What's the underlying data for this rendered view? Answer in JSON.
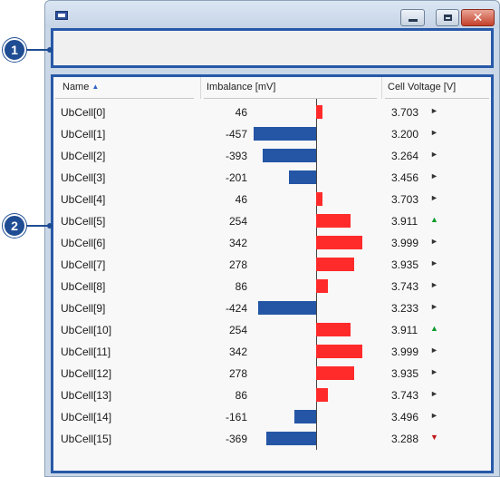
{
  "window": {
    "title": "",
    "controls": {
      "minimize": "minimize",
      "maximize": "maximize",
      "close": "✕"
    }
  },
  "callouts": [
    "1",
    "2"
  ],
  "grid": {
    "columns": {
      "name": "Name",
      "imbalance": "Imbalance [mV]",
      "voltage": "Cell Voltage [V]"
    },
    "sort": {
      "column": "Name",
      "direction": "ascending",
      "icon": "sort-ascending-icon"
    },
    "imbalance_scale_mv": 500,
    "rows": [
      {
        "name": "UbCell[0]",
        "imbalance": "46",
        "voltage": "3.703",
        "trend": "flat"
      },
      {
        "name": "UbCell[1]",
        "imbalance": "-457",
        "voltage": "3.200",
        "trend": "flat"
      },
      {
        "name": "UbCell[2]",
        "imbalance": "-393",
        "voltage": "3.264",
        "trend": "flat"
      },
      {
        "name": "UbCell[3]",
        "imbalance": "-201",
        "voltage": "3.456",
        "trend": "flat"
      },
      {
        "name": "UbCell[4]",
        "imbalance": "46",
        "voltage": "3.703",
        "trend": "flat"
      },
      {
        "name": "UbCell[5]",
        "imbalance": "254",
        "voltage": "3.911",
        "trend": "up"
      },
      {
        "name": "UbCell[6]",
        "imbalance": "342",
        "voltage": "3.999",
        "trend": "flat"
      },
      {
        "name": "UbCell[7]",
        "imbalance": "278",
        "voltage": "3.935",
        "trend": "flat"
      },
      {
        "name": "UbCell[8]",
        "imbalance": "86",
        "voltage": "3.743",
        "trend": "flat"
      },
      {
        "name": "UbCell[9]",
        "imbalance": "-424",
        "voltage": "3.233",
        "trend": "flat"
      },
      {
        "name": "UbCell[10]",
        "imbalance": "254",
        "voltage": "3.911",
        "trend": "up"
      },
      {
        "name": "UbCell[11]",
        "imbalance": "342",
        "voltage": "3.999",
        "trend": "flat"
      },
      {
        "name": "UbCell[12]",
        "imbalance": "278",
        "voltage": "3.935",
        "trend": "flat"
      },
      {
        "name": "UbCell[13]",
        "imbalance": "86",
        "voltage": "3.743",
        "trend": "flat"
      },
      {
        "name": "UbCell[14]",
        "imbalance": "-161",
        "voltage": "3.496",
        "trend": "flat"
      },
      {
        "name": "UbCell[15]",
        "imbalance": "-369",
        "voltage": "3.288",
        "trend": "down"
      }
    ]
  },
  "colors": {
    "negative_bar": "#2556a6",
    "positive_bar": "#ff2b2b",
    "callout": "#1f4d93",
    "panel_border": "#2759a8",
    "trend_up": "#0a9a2a",
    "trend_down": "#c01515"
  }
}
